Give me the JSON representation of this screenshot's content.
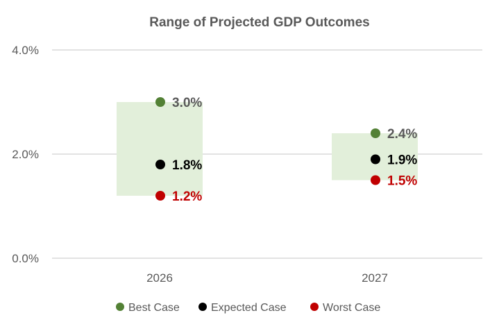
{
  "chart_data": {
    "type": "scatter",
    "title": "Range of Projected GDP Outcomes",
    "categories": [
      "2026",
      "2027"
    ],
    "ylim": [
      0,
      4.0
    ],
    "yticks": [
      "0.0%",
      "2.0%",
      "4.0%"
    ],
    "ytick_values": [
      0,
      2,
      4
    ],
    "grid": true,
    "legend_position": "bottom",
    "range_fill_color": "#E2EFDA",
    "series": [
      {
        "name": "Best Case",
        "values": [
          3.0,
          2.4
        ],
        "labels": [
          "3.0%",
          "2.4%"
        ],
        "color": "#538135",
        "label_color": "#595959"
      },
      {
        "name": "Expected Case",
        "values": [
          1.8,
          1.9
        ],
        "labels": [
          "1.8%",
          "1.9%"
        ],
        "color": "#000000",
        "label_color": "#000000"
      },
      {
        "name": "Worst Case",
        "values": [
          1.2,
          1.5
        ],
        "labels": [
          "1.2%",
          "1.5%"
        ],
        "color": "#C00000",
        "label_color": "#C00000"
      }
    ]
  }
}
